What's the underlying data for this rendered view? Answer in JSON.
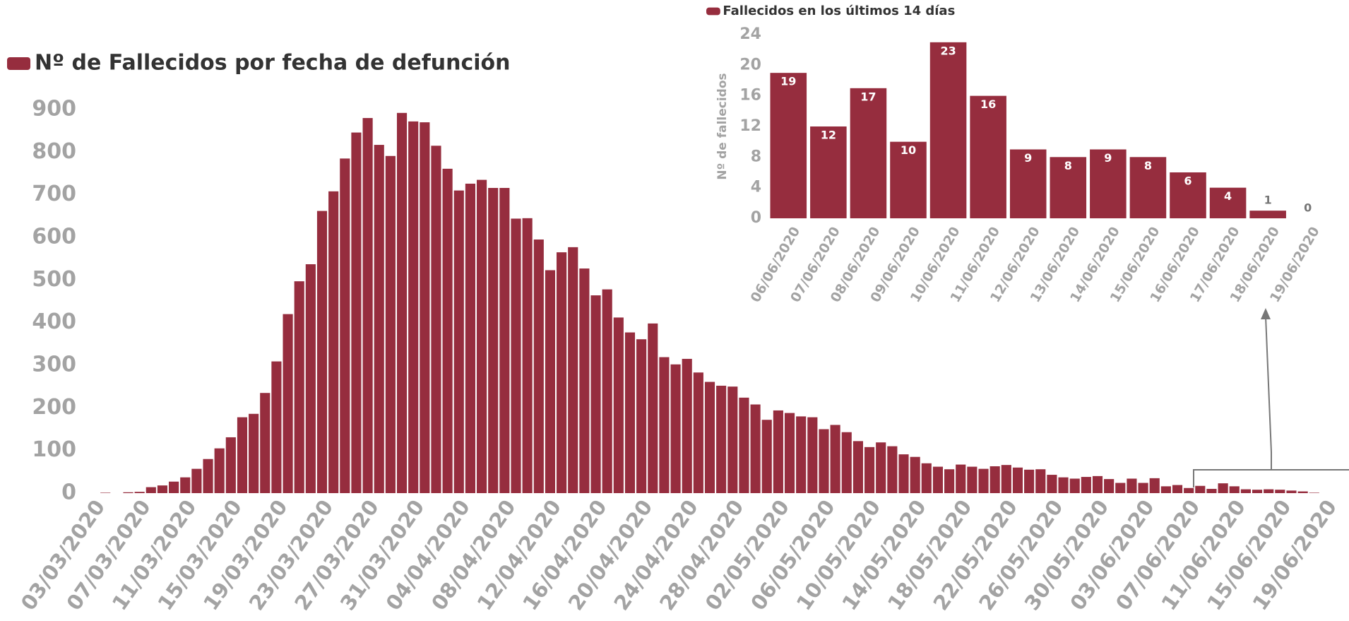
{
  "chart_data": [
    {
      "type": "bar",
      "series": [
        {
          "name": "Nº de Fallecidos por fecha de defunción",
          "color": "#962d3e",
          "values": [
            0,
            1,
            0,
            2,
            3,
            14,
            18,
            27,
            37,
            57,
            80,
            105,
            131,
            178,
            186,
            235,
            309,
            420,
            497,
            537,
            662,
            708,
            785,
            846,
            880,
            817,
            791,
            892,
            872,
            870,
            815,
            761,
            710,
            726,
            735,
            716,
            716,
            644,
            645,
            595,
            523,
            565,
            577,
            527,
            464,
            478,
            412,
            377,
            361,
            398,
            319,
            302,
            315,
            283,
            261,
            252,
            250,
            224,
            208,
            172,
            194,
            188,
            180,
            178,
            150,
            160,
            143,
            122,
            108,
            119,
            110,
            91,
            85,
            70,
            62,
            56,
            67,
            62,
            57,
            63,
            66,
            60,
            55,
            56,
            43,
            37,
            34,
            38,
            40,
            33,
            24,
            34,
            24,
            35,
            16,
            19,
            12,
            17,
            10,
            23,
            16,
            9,
            8,
            9,
            8,
            6,
            4,
            1,
            0
          ]
        }
      ],
      "categories": [
        "03/03/2020",
        null,
        null,
        null,
        "07/03/2020",
        null,
        null,
        null,
        "11/03/2020",
        null,
        null,
        null,
        "15/03/2020",
        null,
        null,
        null,
        "19/03/2020",
        null,
        null,
        null,
        "23/03/2020",
        null,
        null,
        null,
        "27/03/2020",
        null,
        null,
        null,
        "31/03/2020",
        null,
        null,
        null,
        "04/04/2020",
        null,
        null,
        null,
        "08/04/2020",
        null,
        null,
        null,
        "12/04/2020",
        null,
        null,
        null,
        "16/04/2020",
        null,
        null,
        null,
        "20/04/2020",
        null,
        null,
        null,
        "24/04/2020",
        null,
        null,
        null,
        "28/04/2020",
        null,
        null,
        null,
        "02/05/2020",
        null,
        null,
        null,
        "06/05/2020",
        null,
        null,
        null,
        "10/05/2020",
        null,
        null,
        null,
        "14/05/2020",
        null,
        null,
        null,
        "18/05/2020",
        null,
        null,
        null,
        "22/05/2020",
        null,
        null,
        null,
        "26/05/2020",
        null,
        null,
        null,
        "30/05/2020",
        null,
        null,
        null,
        "03/06/2020",
        null,
        null,
        null,
        "07/06/2020",
        null,
        null,
        null,
        "11/06/2020",
        null,
        null,
        null,
        "15/06/2020",
        null,
        null,
        null,
        "19/06/2020"
      ],
      "ylim": [
        0,
        900
      ],
      "yticks": [
        0,
        100,
        200,
        300,
        400,
        500,
        600,
        700,
        800,
        900
      ]
    },
    {
      "type": "bar",
      "ylabel": "Nº de fallecidos",
      "series": [
        {
          "name": "Fallecidos en los últimos 14 días",
          "color": "#962d3e",
          "values": [
            19,
            12,
            17,
            10,
            23,
            16,
            9,
            8,
            9,
            8,
            6,
            4,
            1,
            0
          ]
        }
      ],
      "categories": [
        "06/06/2020",
        "07/06/2020",
        "08/06/2020",
        "09/06/2020",
        "10/06/2020",
        "11/06/2020",
        "12/06/2020",
        "13/06/2020",
        "14/06/2020",
        "15/06/2020",
        "16/06/2020",
        "17/06/2020",
        "18/06/2020",
        "19/06/2020"
      ],
      "ylim": [
        0,
        24
      ],
      "yticks": [
        0,
        4,
        8,
        12,
        16,
        20,
        24
      ]
    }
  ]
}
